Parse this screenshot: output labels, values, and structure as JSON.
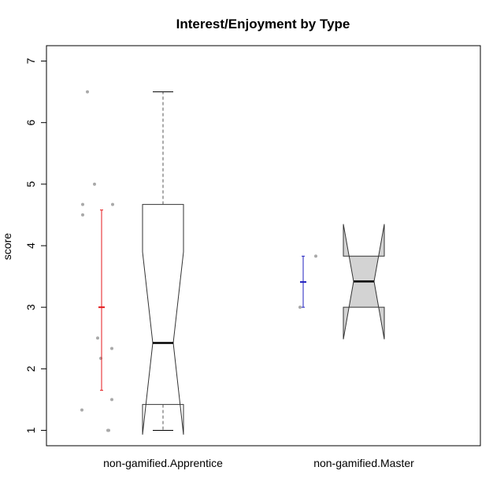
{
  "chart_data": {
    "type": "boxplot",
    "title": "Interest/Enjoyment by Type",
    "xlabel": "",
    "ylabel": "score",
    "ylim": [
      0.75,
      7.25
    ],
    "yticks": [
      1,
      2,
      3,
      4,
      5,
      6,
      7
    ],
    "ytick_labels": [
      "1",
      "2",
      "3",
      "4",
      "5",
      "6",
      "7"
    ],
    "categories": [
      "non-gamified.Apprentice",
      "non-gamified.Master"
    ],
    "boxes": [
      {
        "name": "non-gamified.Apprentice",
        "whisker_low": 1.0,
        "q1": 1.42,
        "median": 2.42,
        "q3": 4.67,
        "whisker_high": 6.5,
        "notch_low": 0.93,
        "notch_high": 3.9,
        "fill": "#ffffff"
      },
      {
        "name": "non-gamified.Master",
        "whisker_low": 3.0,
        "q1": 3.0,
        "median": 3.42,
        "q3": 3.83,
        "whisker_high": 3.83,
        "notch_low": 2.48,
        "notch_high": 4.35,
        "fill": "#d3d3d3"
      }
    ],
    "jitter_points": [
      {
        "group": "non-gamified.Apprentice",
        "values": [
          6.5,
          5.0,
          4.67,
          4.5,
          4.67,
          2.5,
          2.33,
          2.17,
          1.5,
          1.33,
          1.0,
          1.0
        ],
        "color": "#a9a9a9"
      },
      {
        "group": "non-gamified.Master",
        "values": [
          3.83,
          3.0
        ],
        "color": "#a9a9a9"
      }
    ],
    "mean_bars": [
      {
        "group": "non-gamified.Apprentice",
        "mean": 3.0,
        "low": 1.65,
        "high": 4.58,
        "color": "#e41a1c"
      },
      {
        "group": "non-gamified.Master",
        "mean": 3.41,
        "low": 3.0,
        "high": 3.83,
        "color": "#1f1fbf"
      }
    ],
    "grid": false,
    "legend": "none"
  }
}
